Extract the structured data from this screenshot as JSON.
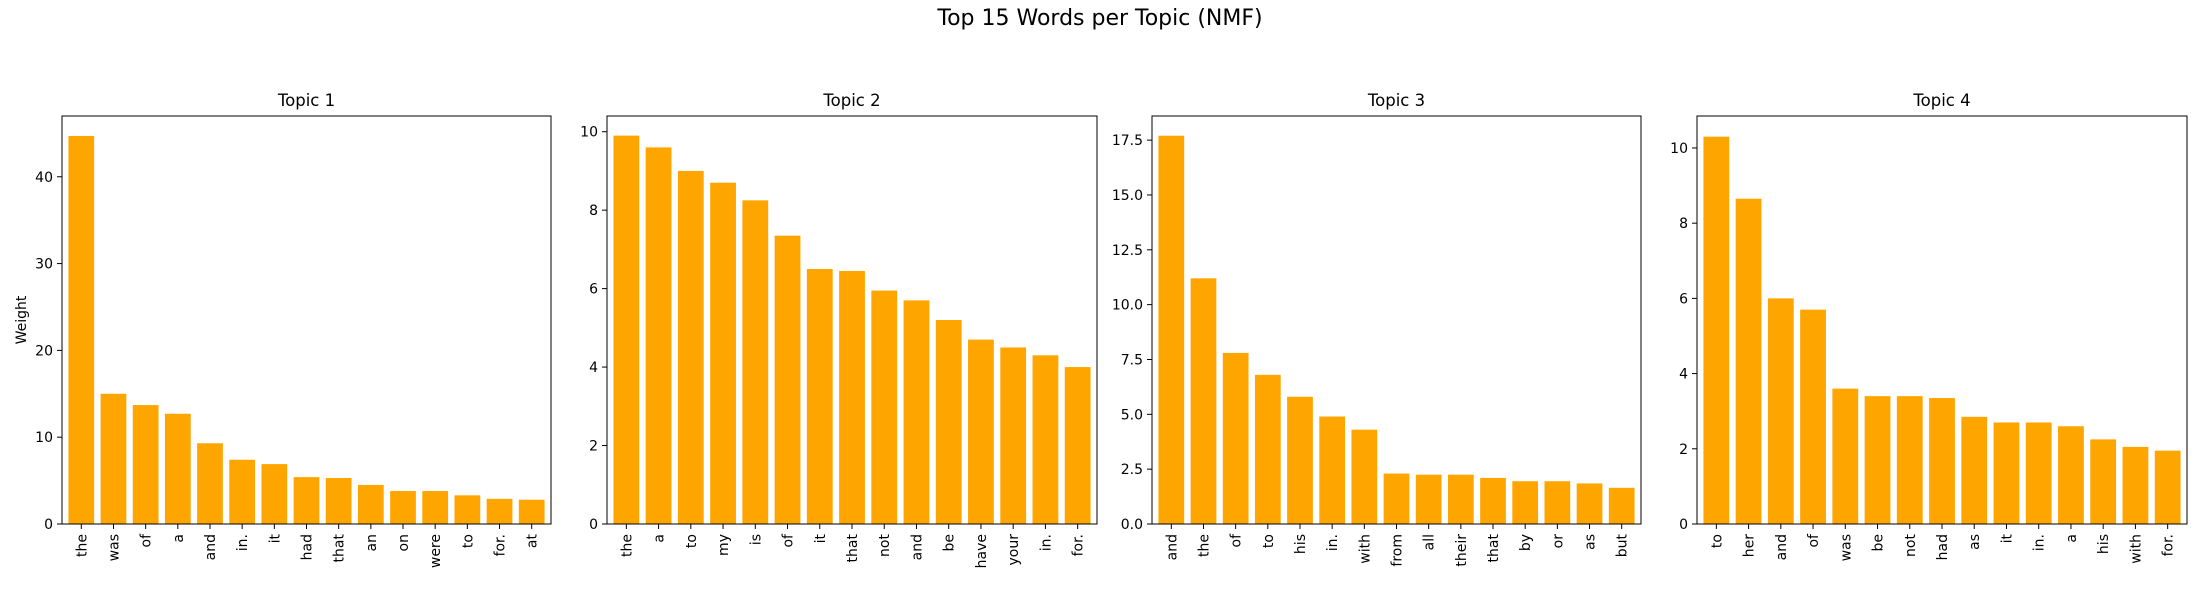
{
  "figure": {
    "suptitle": "Top 15 Words per Topic (NMF)",
    "bar_color": "#FFA500"
  },
  "chart_data": [
    {
      "type": "bar",
      "title": "Topic 1",
      "ylabel": "Weight",
      "xlabel": "",
      "ylim": [
        0,
        47
      ],
      "yticks": [
        0,
        10,
        20,
        30,
        40
      ],
      "ytick_labels": [
        "0",
        "10",
        "20",
        "30",
        "40"
      ],
      "categories": [
        "the",
        "was",
        "of",
        "a",
        "and",
        "in.",
        "it",
        "had",
        "that",
        "an",
        "on",
        "were",
        "to",
        "for.",
        "at"
      ],
      "values": [
        44.7,
        15.0,
        13.7,
        12.7,
        9.3,
        7.4,
        6.9,
        5.4,
        5.3,
        4.5,
        3.8,
        3.8,
        3.3,
        2.9,
        2.8
      ]
    },
    {
      "type": "bar",
      "title": "Topic 2",
      "ylabel": "",
      "xlabel": "",
      "ylim": [
        0,
        10.4
      ],
      "yticks": [
        0,
        2,
        4,
        6,
        8,
        10
      ],
      "ytick_labels": [
        "0",
        "2",
        "4",
        "6",
        "8",
        "10"
      ],
      "categories": [
        "the",
        "a",
        "to",
        "my",
        "is",
        "of",
        "it",
        "that",
        "not",
        "and",
        "be",
        "have",
        "your",
        "in.",
        "for."
      ],
      "values": [
        9.9,
        9.6,
        9.0,
        8.7,
        8.25,
        7.35,
        6.5,
        6.45,
        5.95,
        5.7,
        5.2,
        4.7,
        4.5,
        4.3,
        4.0
      ]
    },
    {
      "type": "bar",
      "title": "Topic 3",
      "ylabel": "",
      "xlabel": "",
      "ylim": [
        0,
        18.6
      ],
      "yticks": [
        0,
        2.5,
        5.0,
        7.5,
        10.0,
        12.5,
        15.0,
        17.5
      ],
      "ytick_labels": [
        "0.0",
        "2.5",
        "5.0",
        "7.5",
        "10.0",
        "12.5",
        "15.0",
        "17.5"
      ],
      "categories": [
        "and",
        "the",
        "of",
        "to",
        "his",
        "in.",
        "with",
        "from",
        "all",
        "their",
        "that",
        "by",
        "or",
        "as",
        "but"
      ],
      "values": [
        17.7,
        11.2,
        7.8,
        6.8,
        5.8,
        4.9,
        4.3,
        2.3,
        2.25,
        2.25,
        2.1,
        1.95,
        1.95,
        1.85,
        1.65
      ]
    },
    {
      "type": "bar",
      "title": "Topic 4",
      "ylabel": "",
      "xlabel": "",
      "ylim": [
        0,
        10.85
      ],
      "yticks": [
        0,
        2,
        4,
        6,
        8,
        10
      ],
      "ytick_labels": [
        "0",
        "2",
        "4",
        "6",
        "8",
        "10"
      ],
      "categories": [
        "to",
        "her",
        "and",
        "of",
        "was",
        "be",
        "not",
        "had",
        "as",
        "it",
        "in.",
        "a",
        "his",
        "with",
        "for."
      ],
      "values": [
        10.3,
        8.65,
        6.0,
        5.7,
        3.6,
        3.4,
        3.4,
        3.35,
        2.85,
        2.7,
        2.7,
        2.6,
        2.25,
        2.05,
        1.95
      ]
    }
  ]
}
